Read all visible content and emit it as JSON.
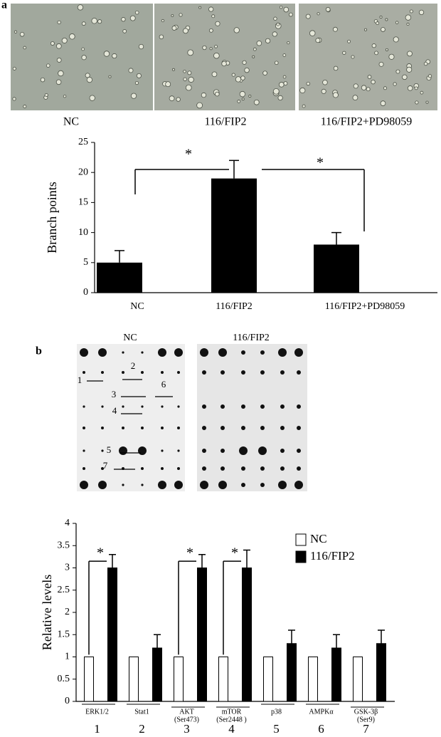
{
  "panel_labels": [
    "a",
    "b"
  ],
  "micrograph_labels": [
    "NC",
    "116/FIP2",
    "116/FIP2+PD98059"
  ],
  "blot_labels": [
    "NC",
    "116/FIP2"
  ],
  "blot_spot_labels": [
    1,
    2,
    3,
    4,
    5,
    6,
    7
  ],
  "chart_data": [
    {
      "type": "bar",
      "y_label": "Branch points",
      "categories": [
        "NC",
        "116/FIP2",
        "116/FIP2+PD98059"
      ],
      "values": [
        5,
        19,
        8
      ],
      "errors": [
        2,
        3,
        2
      ],
      "color": "#000000",
      "ylim": [
        0,
        25
      ],
      "yticks": [
        0,
        5,
        10,
        15,
        20,
        25
      ],
      "annotations": [
        "*",
        "*"
      ]
    },
    {
      "type": "grouped_bar",
      "y_label": "Relative levels",
      "categories": [
        [
          "ERK1/2"
        ],
        [
          "Stat1"
        ],
        [
          "AKT",
          "(Ser473)"
        ],
        [
          "mTOR",
          "(Ser2448 )"
        ],
        [
          "p38"
        ],
        [
          "AMPKα"
        ],
        [
          "GSK-3β",
          "(Ser9)"
        ]
      ],
      "group_numbers": [
        1,
        2,
        3,
        4,
        5,
        6,
        7
      ],
      "series": [
        {
          "name": "NC",
          "color": "#ffffff",
          "values": [
            1,
            1,
            1,
            1,
            1,
            1,
            1
          ]
        },
        {
          "name": "116/FIP2",
          "color": "#000000",
          "values": [
            3,
            1.2,
            3,
            3,
            1.3,
            1.2,
            1.3
          ],
          "errors": [
            0.3,
            0.3,
            0.3,
            0.4,
            0.3,
            0.3,
            0.3
          ]
        }
      ],
      "ylim": [
        0,
        4
      ],
      "yticks": [
        0,
        0.5,
        1,
        1.5,
        2,
        2.5,
        3,
        3.5,
        4
      ],
      "legend": "upper right",
      "annotations": [
        "*",
        "*",
        "*"
      ]
    }
  ]
}
